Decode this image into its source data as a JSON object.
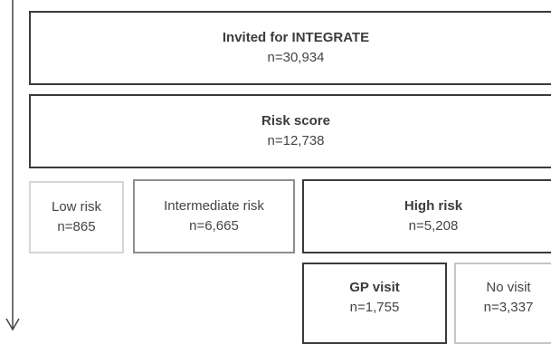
{
  "flowchart": {
    "invited": {
      "title": "Invited for INTEGRATE",
      "count": "n=30,934"
    },
    "risk_score": {
      "title": "Risk score",
      "count": "n=12,738"
    },
    "low_risk": {
      "title": "Low risk",
      "count": "n=865"
    },
    "intermediate_risk": {
      "title": "Intermediate risk",
      "count": "n=6,665"
    },
    "high_risk": {
      "title": "High risk",
      "count": "n=5,208"
    },
    "gp_visit": {
      "title": "GP visit",
      "count": "n=1,755"
    },
    "no_visit": {
      "title": "No visit",
      "count": "n=3,337"
    }
  },
  "colors": {
    "border_dark": "#3a3a3a",
    "border_mid": "#8e8e8e",
    "border_light": "#d6d6d6",
    "text": "#444444"
  },
  "icons": {
    "arrow": "arrow-down-icon"
  }
}
